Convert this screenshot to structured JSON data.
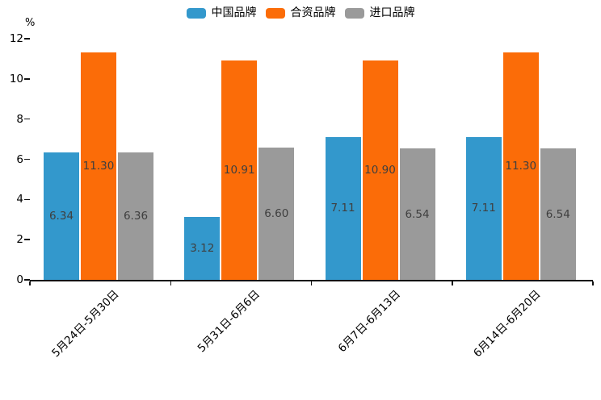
{
  "chart_data": {
    "type": "bar",
    "title": "",
    "ylabel": "%",
    "xlabel": "",
    "ylim": [
      0,
      12
    ],
    "yticks": [
      0,
      2,
      4,
      6,
      8,
      10,
      12
    ],
    "grid": false,
    "legend_position": "top-center",
    "value_label_position": "center-of-bar",
    "categories": [
      "5月24日-5月30日",
      "5月31日-6月6日",
      "6月7日-6月13日",
      "6月14日-6月20日"
    ],
    "series": [
      {
        "name": "中国品牌",
        "color": "#3398cc",
        "values": [
          6.34,
          3.12,
          7.11,
          7.11
        ],
        "labels": [
          "6.34",
          "3.12",
          "7.11",
          "7.11"
        ]
      },
      {
        "name": "合资品牌",
        "color": "#fb6c08",
        "values": [
          11.3,
          10.91,
          10.9,
          11.3
        ],
        "labels": [
          "11.30",
          "10.91",
          "10.90",
          "11.30"
        ]
      },
      {
        "name": "进口品牌",
        "color": "#9a9a9a",
        "values": [
          6.36,
          6.6,
          6.54,
          6.54
        ],
        "labels": [
          "6.36",
          "6.60",
          "6.54",
          "6.54"
        ]
      }
    ]
  },
  "colors": {
    "background": "#ffffff",
    "axis_line": "#111111",
    "axis_text": "#000000",
    "bar_label_text": "#3f3f3f",
    "series_china": "#3398cc",
    "series_joint_venture": "#fb6c08",
    "series_import": "#9a9a9a"
  }
}
